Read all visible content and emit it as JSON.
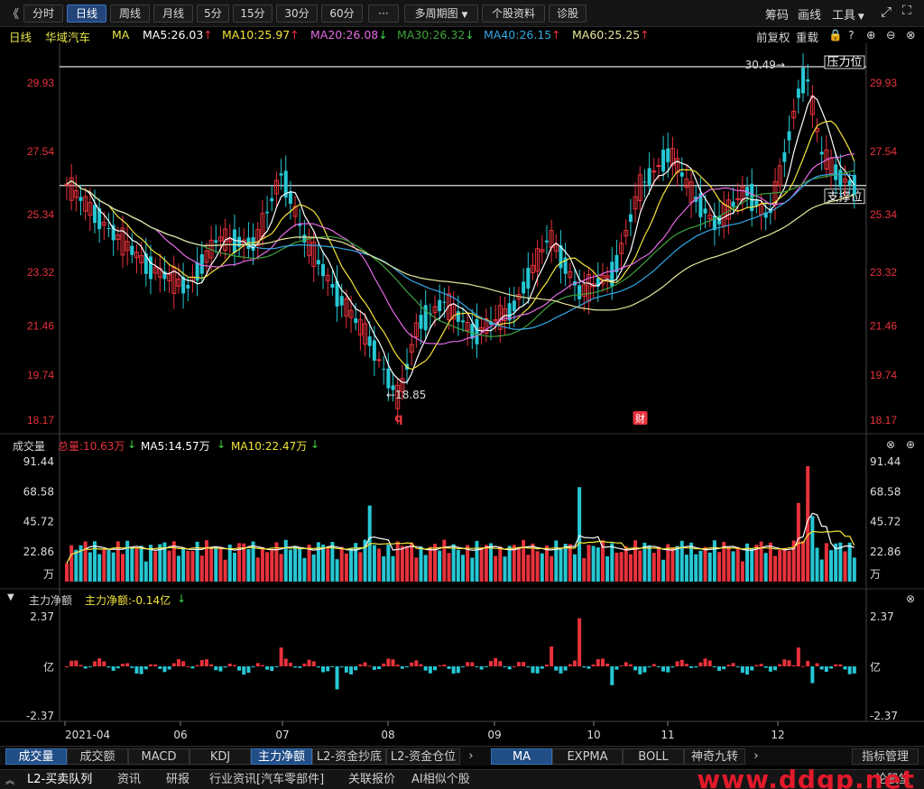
{
  "toolbar": {
    "back_icon": "double-chevron-left",
    "periods": [
      "分时",
      "日线",
      "周线",
      "月线",
      "5分",
      "15分",
      "30分",
      "60分"
    ],
    "active_period": "日线",
    "more": "···",
    "multi_period": "多周期图",
    "stock_info": "个股资料",
    "diagnose": "诊股",
    "right": {
      "chips": "筹码",
      "draw": "画线",
      "tools": "工具"
    }
  },
  "ma_legend": {
    "period": "日线",
    "stock_name": "华域汽车",
    "ma_label": "MA",
    "items": [
      {
        "text": "MA5:26.03",
        "arrow": "↑",
        "color": "#ffffff"
      },
      {
        "text": "MA10:25.97",
        "arrow": "↑",
        "color": "#f3e53b"
      },
      {
        "text": "MA20:26.08",
        "arrow": "↓",
        "color": "#e36be6"
      },
      {
        "text": "MA30:26.32",
        "arrow": "↓",
        "color": "#3ea33a"
      },
      {
        "text": "MA40:26.15",
        "arrow": "↑",
        "color": "#34a7e6"
      },
      {
        "text": "MA60:25.25",
        "arrow": "↑",
        "color": "#e6e69a"
      }
    ],
    "right": {
      "adjust": "前复权",
      "reload": "重载"
    }
  },
  "colors": {
    "up": "#e8323c",
    "down": "#26c7d4",
    "price_label": "#e8323c",
    "bg": "#000000"
  },
  "chart_data": [
    {
      "type": "candlestick",
      "title": "华域汽车 日线",
      "y_ticks": [
        29.93,
        27.54,
        25.34,
        23.32,
        21.46,
        19.74,
        18.17
      ],
      "ylim": [
        18.17,
        30.49
      ],
      "x_ticks": [
        "2021-04",
        "06",
        "07",
        "08",
        "09",
        "10",
        "11",
        "12"
      ],
      "high_label": "30.49",
      "low_label": "18.85",
      "pressure_label": "压力位",
      "support_label": "支撑位",
      "pressure_level": 30.49,
      "support_level": 26.35,
      "event_markers": [
        {
          "text": "q",
          "month": "08"
        },
        {
          "text": "财",
          "month": "10"
        }
      ]
    },
    {
      "type": "bar",
      "title": "成交量",
      "total_label": "总量:10.63万",
      "ma5_label": "MA5:14.57万",
      "ma10_label": "MA10:22.47万",
      "y_ticks": [
        91.44,
        68.58,
        45.72,
        22.86
      ],
      "unit": "万"
    },
    {
      "type": "bar",
      "title": "主力净额",
      "value_label": "主力净额:-0.14亿",
      "y_ticks": [
        2.37,
        -2.37
      ],
      "unit": "亿"
    }
  ],
  "volume": {
    "title": "成交量",
    "total": "总量:10.63万",
    "ma5": "MA5:14.57万",
    "ma10": "MA10:22.47万",
    "ticks": [
      "91.44",
      "68.58",
      "45.72",
      "22.86",
      "万"
    ]
  },
  "net_flow": {
    "title": "主力净额",
    "value": "主力净额:-0.14亿",
    "ticks": [
      "2.37",
      "亿",
      "-2.37"
    ]
  },
  "indicator_tabs": [
    "成交量",
    "成交额",
    "MACD",
    "KDJ",
    "主力净额",
    "L2-资金抄底",
    "L2-资金仓位"
  ],
  "active_indicator_tabs": [
    "成交量",
    "主力净额"
  ],
  "overlay_tabs": [
    "MA",
    "EXPMA",
    "BOLL",
    "神奇九转"
  ],
  "active_overlay": "MA",
  "indicator_manage": "指标管理",
  "news_tabs": [
    "L2-买卖队列",
    "资讯",
    "研报",
    "行业资讯[汽车零部件]",
    "关联报价",
    "AI相似个股"
  ],
  "news_right": "论股堂",
  "watermark": "www.ddgp.net"
}
